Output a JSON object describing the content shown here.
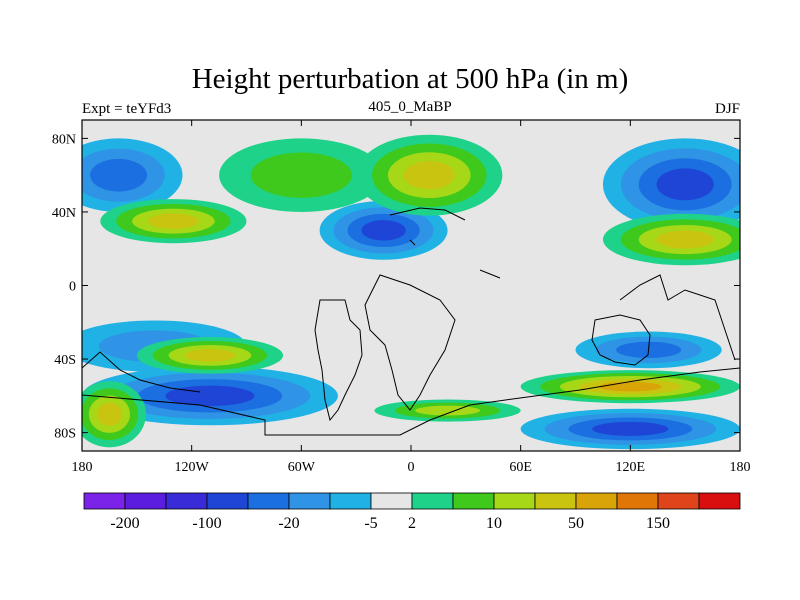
{
  "chart_data": {
    "type": "contour-map",
    "title": "Height perturbation at 500 hPa (in m)",
    "left_label": "Expt = teYFd3",
    "center_label": "405_0_MaBP",
    "right_label": "DJF",
    "projection": "cylindrical-equidistant",
    "xlim": [
      -180,
      180
    ],
    "ylim": [
      -90,
      90
    ],
    "x_ticks": [
      -180,
      -120,
      -60,
      0,
      60,
      120,
      180
    ],
    "x_tick_labels": [
      "180",
      "120W",
      "60W",
      "0",
      "60E",
      "120E",
      "180"
    ],
    "y_ticks": [
      80,
      40,
      0,
      -40,
      -80
    ],
    "y_tick_labels": [
      "80N",
      "40N",
      "0",
      "40S",
      "80S"
    ],
    "colorbar": {
      "colors": [
        "#7b23e8",
        "#5b1ee0",
        "#3a2bd8",
        "#1f45d6",
        "#1b6fe0",
        "#2f93e6",
        "#20b2e4",
        "#e6e6e6",
        "#1ed28a",
        "#3ec91c",
        "#a6d818",
        "#c8c410",
        "#d9a408",
        "#e07606",
        "#e0441a",
        "#d90f0f"
      ],
      "levels": [
        "-200",
        "-100",
        "-20",
        "-5",
        "2",
        "10",
        "50",
        "150"
      ],
      "label_positions": [
        1,
        3,
        5,
        7,
        8,
        10,
        12,
        14
      ]
    },
    "fields": {
      "base": "#e6e6e6",
      "blobs": [
        {
          "lon": 150,
          "lat": 55,
          "rlon": 45,
          "rlat": 25,
          "levels": [
            1,
            2,
            3,
            4
          ],
          "sign": -1
        },
        {
          "lon": -160,
          "lat": 60,
          "rlon": 35,
          "rlat": 20,
          "levels": [
            1,
            2,
            3
          ],
          "sign": -1
        },
        {
          "lon": -15,
          "lat": 30,
          "rlon": 35,
          "rlat": 16,
          "levels": [
            1,
            2,
            3,
            4
          ],
          "sign": -1
        },
        {
          "lon": -60,
          "lat": 60,
          "rlon": 45,
          "rlat": 20,
          "levels": [
            1,
            2
          ],
          "sign": 1
        },
        {
          "lon": 10,
          "lat": 60,
          "rlon": 40,
          "rlat": 22,
          "levels": [
            1,
            2,
            3,
            4
          ],
          "sign": 1
        },
        {
          "lon": -130,
          "lat": 35,
          "rlon": 40,
          "rlat": 12,
          "levels": [
            1,
            2,
            3,
            4
          ],
          "sign": 1
        },
        {
          "lon": 150,
          "lat": 25,
          "rlon": 45,
          "rlat": 14,
          "levels": [
            1,
            2,
            3,
            4
          ],
          "sign": 1
        },
        {
          "lon": -110,
          "lat": -60,
          "rlon": 70,
          "rlat": 16,
          "levels": [
            1,
            2,
            3,
            4
          ],
          "sign": -1
        },
        {
          "lon": 120,
          "lat": -78,
          "rlon": 60,
          "rlat": 11,
          "levels": [
            1,
            2,
            3,
            4
          ],
          "sign": -1
        },
        {
          "lon": -140,
          "lat": -33,
          "rlon": 50,
          "rlat": 14,
          "levels": [
            1,
            2
          ],
          "sign": -1
        },
        {
          "lon": 130,
          "lat": -35,
          "rlon": 40,
          "rlat": 10,
          "levels": [
            1,
            2,
            3
          ],
          "sign": -1
        },
        {
          "lon": -110,
          "lat": -38,
          "rlon": 40,
          "rlat": 10,
          "levels": [
            1,
            2,
            3,
            4
          ],
          "sign": 1
        },
        {
          "lon": 120,
          "lat": -55,
          "rlon": 60,
          "rlat": 9,
          "levels": [
            1,
            2,
            3,
            4,
            5
          ],
          "sign": 1
        },
        {
          "lon": -165,
          "lat": -70,
          "rlon": 20,
          "rlat": 18,
          "levels": [
            1,
            2,
            3,
            4
          ],
          "sign": 1
        },
        {
          "lon": 20,
          "lat": -68,
          "rlon": 40,
          "rlat": 6,
          "levels": [
            1,
            2,
            3
          ],
          "sign": 1
        }
      ]
    }
  }
}
